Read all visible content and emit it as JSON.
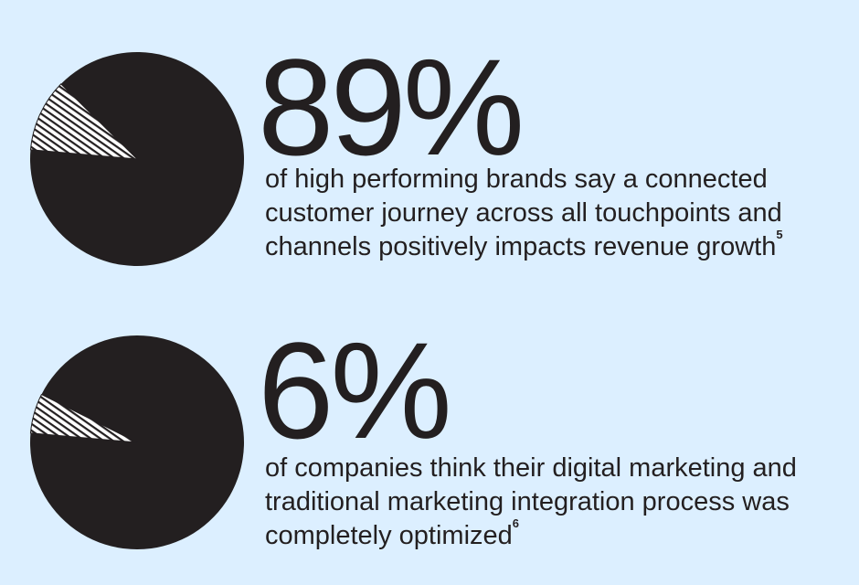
{
  "chart_data": [
    {
      "type": "pie",
      "slices": [
        {
          "label": "",
          "value": 89,
          "color": "#231f20"
        },
        {
          "label": "",
          "value": 11,
          "pattern": "hatched"
        }
      ],
      "headline": "89%",
      "caption": "of high performing brands say a connected customer journey across all touchpoints and channels positively impacts revenue growth",
      "footnote": "5"
    },
    {
      "type": "pie",
      "slices": [
        {
          "label": "",
          "value": 94,
          "color": "#231f20"
        },
        {
          "label": "",
          "value": 6,
          "pattern": "hatched"
        }
      ],
      "headline": "6%",
      "caption": "of companies think their digital marketing and traditional marketing integration process was completely optimized",
      "footnote": "6"
    }
  ],
  "colors": {
    "background": "#dcefff",
    "ink": "#231f20"
  }
}
